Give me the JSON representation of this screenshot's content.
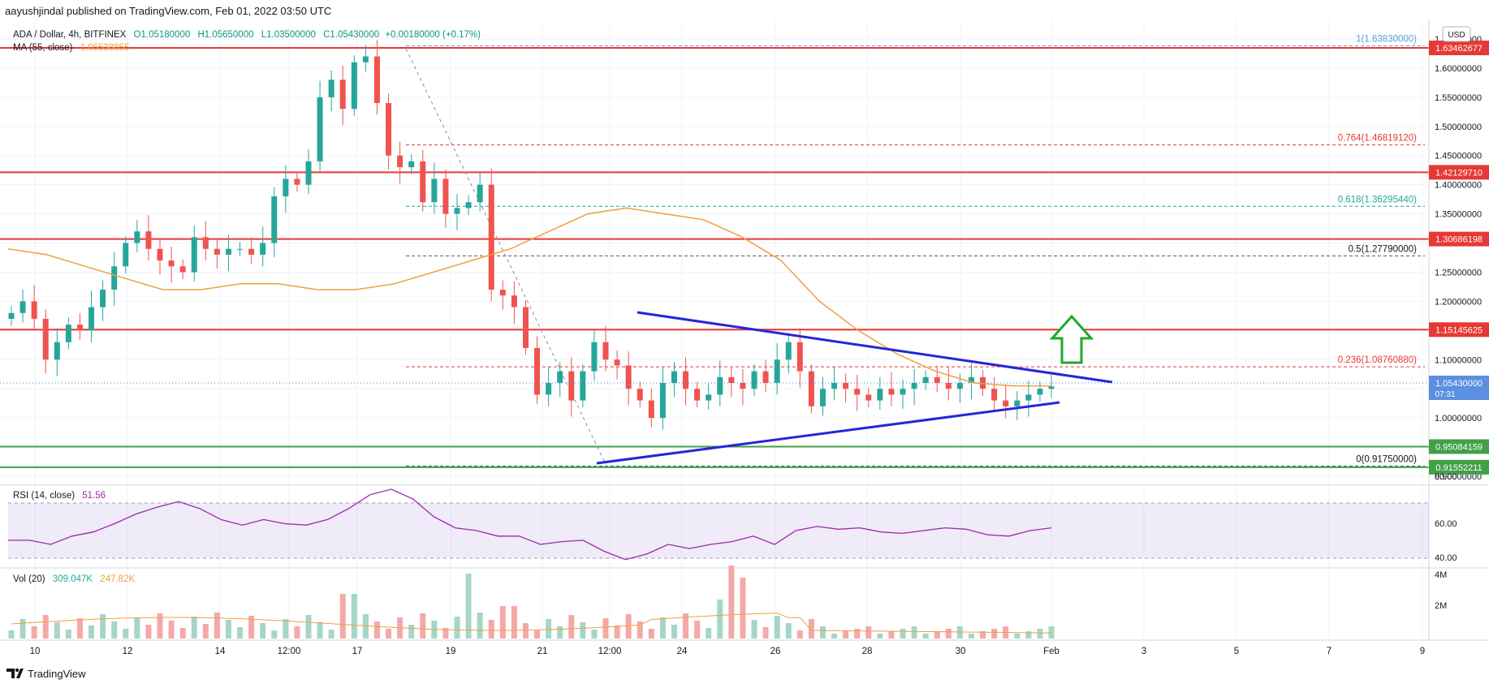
{
  "header": {
    "published": "aayushjindal published on TradingView.com, Feb 01, 2022 03:50 UTC"
  },
  "legend": {
    "symbol": "ADA / Dollar, 4h, BITFINEX",
    "open": "O1.05180000",
    "high": "H1.05650000",
    "low": "L1.03500000",
    "close": "C1.05430000",
    "change": "+0.00180000 (+0.17%)",
    "ma_label": "MA (55, close)",
    "ma_value": "1.05538855"
  },
  "currency_button": "USD",
  "colors": {
    "up": "#26a69a",
    "down": "#ef5350",
    "resistance": "#e53935",
    "support": "#43a047",
    "trendline": "#2525d9",
    "ma": "#f0a040",
    "rsi": "#9c27b0",
    "arrow": "#1eaa2a"
  },
  "price_axis": {
    "ticks": [
      "1.65000000",
      "1.60000000",
      "1.55000000",
      "1.50000000",
      "1.45000000",
      "1.40000000",
      "1.35000000",
      "1.30000000",
      "1.25000000",
      "1.20000000",
      "1.15000000",
      "1.10000000",
      "1.05000000",
      "1.00000000",
      "0.95000000",
      "0.90000000"
    ],
    "current_price": "1.05430000",
    "countdown": "07:31"
  },
  "time_axis": {
    "ticks": [
      "10",
      "12",
      "14",
      "12:00",
      "17",
      "19",
      "21",
      "12:00",
      "24",
      "26",
      "28",
      "30",
      "Feb",
      "3",
      "5",
      "7",
      "9"
    ]
  },
  "levels": {
    "resistance": [
      "1.63462677",
      "1.42129710",
      "1.30686198",
      "1.15145625"
    ],
    "support": [
      "0.95084159",
      "0.91552211"
    ]
  },
  "fibonacci": [
    {
      "label": "1(1.63830000)",
      "value": 1.6383
    },
    {
      "label": "0.764(1.46819120)",
      "value": 1.4682
    },
    {
      "label": "0.618(1.36295440)",
      "value": 1.36295
    },
    {
      "label": "0.5(1.27790000)",
      "value": 1.2779
    },
    {
      "label": "0.236(1.08760880)",
      "value": 1.0876
    },
    {
      "label": "0(0.91750000)",
      "value": 0.9175
    }
  ],
  "rsi": {
    "label": "RSI (14, close)",
    "value": "51.56",
    "ticks": [
      "80.00",
      "60.00",
      "40.00"
    ]
  },
  "volume": {
    "label": "Vol (20)",
    "value1": "309.047K",
    "value2": "247.82K",
    "ticks": [
      "4M",
      "2M"
    ]
  },
  "footer": {
    "brand": "TradingView"
  },
  "chart_data": {
    "type": "candlestick",
    "symbol": "ADA / Dollar",
    "timeframe": "4h",
    "exchange": "BITFINEX",
    "y_range": [
      0.88,
      1.67
    ],
    "close_series": [
      1.18,
      1.2,
      1.17,
      1.1,
      1.13,
      1.16,
      1.15,
      1.19,
      1.22,
      1.26,
      1.3,
      1.32,
      1.29,
      1.27,
      1.26,
      1.25,
      1.31,
      1.29,
      1.28,
      1.29,
      1.29,
      1.28,
      1.3,
      1.38,
      1.41,
      1.4,
      1.44,
      1.55,
      1.58,
      1.53,
      1.61,
      1.62,
      1.54,
      1.45,
      1.43,
      1.44,
      1.37,
      1.41,
      1.35,
      1.36,
      1.37,
      1.4,
      1.22,
      1.21,
      1.19,
      1.12,
      1.04,
      1.06,
      1.08,
      1.03,
      1.08,
      1.13,
      1.1,
      1.09,
      1.05,
      1.03,
      1.0,
      1.06,
      1.08,
      1.05,
      1.03,
      1.04,
      1.07,
      1.06,
      1.05,
      1.08,
      1.06,
      1.1,
      1.13,
      1.08,
      1.02,
      1.05,
      1.06,
      1.05,
      1.04,
      1.03,
      1.05,
      1.04,
      1.05,
      1.06,
      1.07,
      1.06,
      1.05,
      1.06,
      1.07,
      1.05,
      1.03,
      1.02,
      1.03,
      1.04,
      1.05,
      1.054
    ],
    "ma_55_series": [
      1.29,
      1.28,
      1.26,
      1.24,
      1.22,
      1.22,
      1.23,
      1.23,
      1.22,
      1.22,
      1.23,
      1.25,
      1.27,
      1.29,
      1.32,
      1.35,
      1.36,
      1.35,
      1.34,
      1.31,
      1.27,
      1.2,
      1.15,
      1.11,
      1.08,
      1.06,
      1.055,
      1.055
    ],
    "rsi_series": [
      43,
      43,
      40,
      46,
      49,
      55,
      62,
      67,
      71,
      66,
      58,
      54,
      58,
      55,
      54,
      58,
      66,
      76,
      80,
      73,
      60,
      52,
      50,
      46,
      46,
      40,
      42,
      43,
      35,
      29,
      33,
      40,
      37,
      40,
      42,
      46,
      40,
      50,
      53,
      51,
      52,
      49,
      48,
      50,
      52,
      51,
      47,
      46,
      50,
      52
    ]
  }
}
